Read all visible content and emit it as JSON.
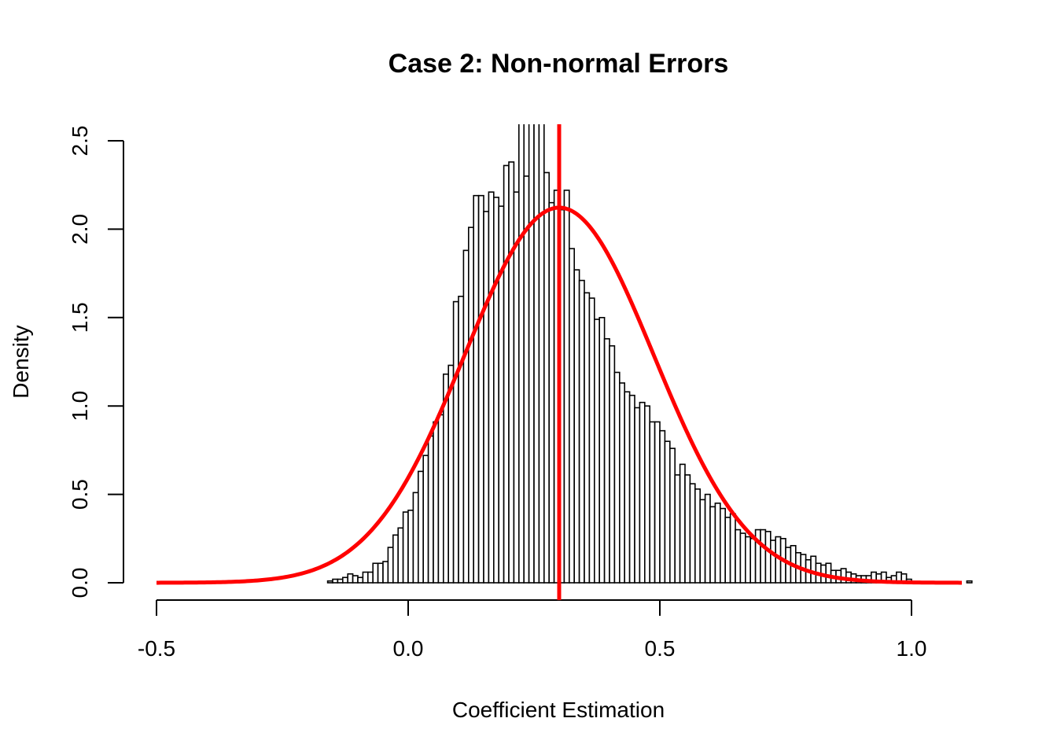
{
  "chart_data": {
    "type": "bar",
    "title": "Case 2: Non-normal Errors",
    "xlabel": "Coefficient Estimation",
    "ylabel": "Density",
    "xlim": [
      -0.5,
      1.16
    ],
    "ylim": [
      0,
      2.6
    ],
    "x_ticks": [
      {
        "value": -0.5,
        "label": "-0.5"
      },
      {
        "value": 0.0,
        "label": "0.0"
      },
      {
        "value": 0.5,
        "label": "0.5"
      },
      {
        "value": 1.0,
        "label": "1.0"
      }
    ],
    "y_ticks": [
      {
        "value": 0.0,
        "label": "0.0"
      },
      {
        "value": 0.5,
        "label": "0.5"
      },
      {
        "value": 1.0,
        "label": "1.0"
      },
      {
        "value": 1.5,
        "label": "1.5"
      },
      {
        "value": 2.0,
        "label": "2.0"
      },
      {
        "value": 2.5,
        "label": "2.5"
      }
    ],
    "histogram": {
      "bin_start": -0.16,
      "bin_width": 0.01,
      "densities": [
        0.01,
        0.02,
        0.02,
        0.03,
        0.05,
        0.04,
        0.03,
        0.06,
        0.06,
        0.11,
        0.11,
        0.12,
        0.2,
        0.27,
        0.31,
        0.4,
        0.41,
        0.51,
        0.63,
        0.72,
        0.83,
        0.91,
        0.95,
        1.18,
        1.23,
        1.59,
        1.62,
        1.88,
        2.01,
        2.19,
        2.19,
        2.1,
        2.21,
        2.18,
        2.13,
        2.36,
        2.38,
        2.21,
        2.97,
        2.3,
        2.95,
        2.72,
        3.0,
        2.32,
        2.15,
        2.22,
        2.11,
        2.22,
        1.89,
        1.77,
        1.71,
        1.64,
        1.61,
        1.49,
        1.5,
        1.38,
        1.34,
        1.19,
        1.13,
        1.08,
        1.06,
        0.99,
        1.02,
        1.0,
        0.91,
        0.91,
        0.86,
        0.8,
        0.76,
        0.61,
        0.67,
        0.61,
        0.56,
        0.53,
        0.47,
        0.5,
        0.43,
        0.45,
        0.42,
        0.37,
        0.39,
        0.3,
        0.28,
        0.26,
        0.25,
        0.3,
        0.3,
        0.29,
        0.24,
        0.26,
        0.25,
        0.2,
        0.21,
        0.17,
        0.16,
        0.13,
        0.15,
        0.11,
        0.1,
        0.11,
        0.07,
        0.07,
        0.08,
        0.06,
        0.05,
        0.04,
        0.04,
        0.04,
        0.06,
        0.05,
        0.06,
        0.03,
        0.04,
        0.06,
        0.05,
        0.02,
        0.0,
        0.0,
        0.0,
        0.0,
        0.0,
        0.0,
        0.0,
        0.0,
        0.0,
        0.0,
        0.0,
        0.01
      ]
    },
    "normal_curve": {
      "mean": 0.3,
      "sd": 0.188,
      "x_range": [
        -0.5,
        1.1
      ],
      "color": "#ff0000"
    },
    "vertical_line": {
      "x": 0.3,
      "color": "#ff0000"
    },
    "bar_color": "#ffffff",
    "bar_border_color": "#000000"
  }
}
